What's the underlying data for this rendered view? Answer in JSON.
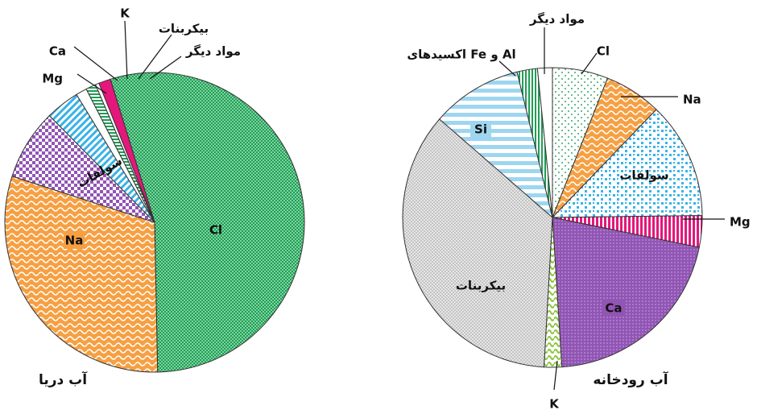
{
  "chart_data": [
    {
      "type": "pie",
      "caption": "آب دریا",
      "slices": [
        {
          "label": "Cl",
          "value": 55.0,
          "color": "#1f9e55"
        },
        {
          "label": "Na",
          "value": 30.6,
          "color": "#f6a043"
        },
        {
          "label": "سولفات",
          "value": 7.7,
          "color": "#9155b5"
        },
        {
          "label": "Mg",
          "value": 3.7,
          "color": "#3ab2e6"
        },
        {
          "label": "Ca",
          "value": 1.2,
          "color": "#ffffff"
        },
        {
          "label": "K",
          "value": 1.1,
          "color": "#1f9e55"
        },
        {
          "label": "بیکربنات",
          "value": 0.4,
          "color": "#ffffff"
        },
        {
          "label": "مواد دیگر",
          "value": 1.3,
          "color": "#e4177c"
        }
      ]
    },
    {
      "type": "pie",
      "caption": "آب رودخانه",
      "slices": [
        {
          "label": "Cl",
          "value": 6.0,
          "color": "#3aa86a"
        },
        {
          "label": "Na",
          "value": 6.2,
          "color": "#f6a043"
        },
        {
          "label": "سولفات",
          "value": 12.6,
          "color": "#3ab2e6"
        },
        {
          "label": "Mg",
          "value": 3.4,
          "color": "#e4177c"
        },
        {
          "label": "Ca",
          "value": 20.8,
          "color": "#9155b5"
        },
        {
          "label": "K",
          "value": 1.9,
          "color": "#8cc63f"
        },
        {
          "label": "بیکربنات",
          "value": 35.5,
          "color": "#bdbdbd"
        },
        {
          "label": "Si",
          "value": 9.8,
          "color": "#7cc7ea"
        },
        {
          "label": "اکسیدهای Fe و Al",
          "value": 2.2,
          "color": "#1f9e55"
        },
        {
          "label": "مواد دیگر",
          "value": 1.6,
          "color": "#ffffff"
        }
      ]
    }
  ]
}
